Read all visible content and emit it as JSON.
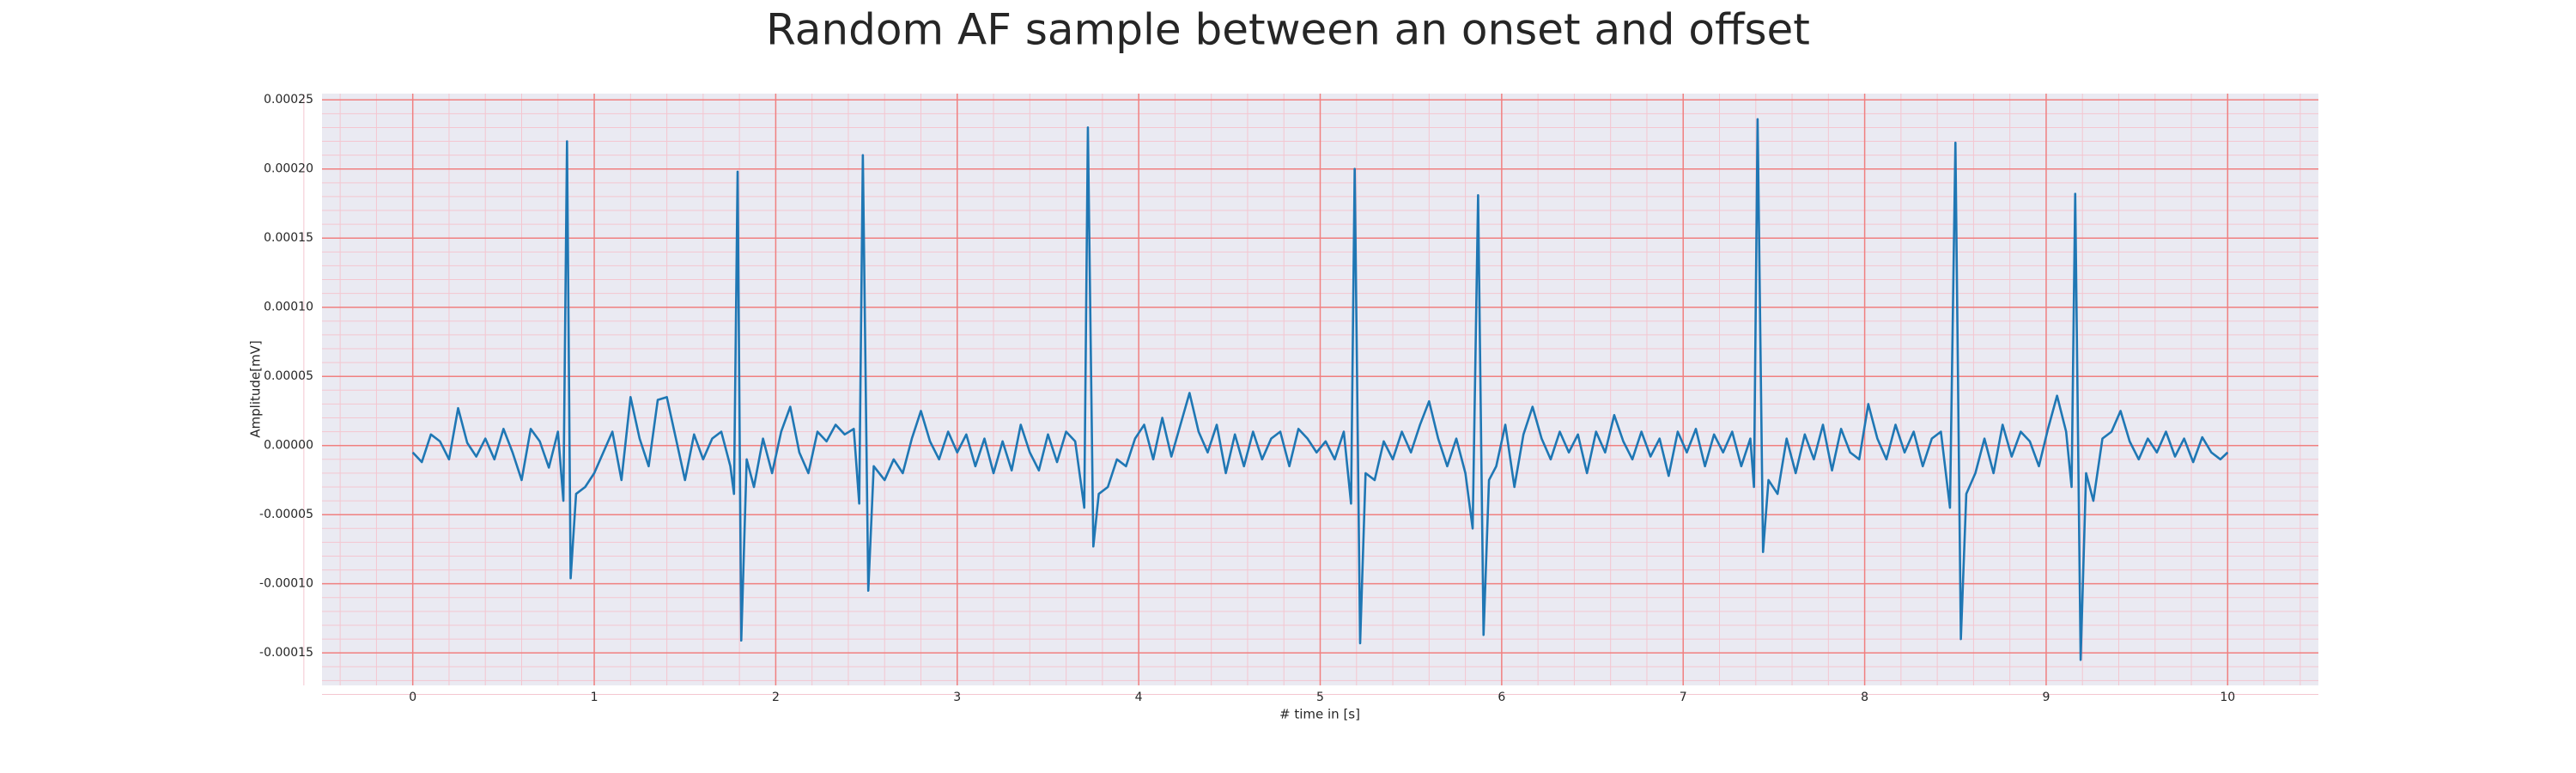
{
  "chart_data": {
    "type": "line",
    "title": "Random AF sample between an onset and offset",
    "xlabel": "# time in [s]",
    "ylabel": "Amplitude[mV]",
    "color": "#1f77b4",
    "background": "#eaeaf2",
    "grid": true,
    "grid_color": "#f08080",
    "minor_grid_color": "#f4c6d0",
    "minor_divisions": 5,
    "xlim": [
      -0.5,
      10.5
    ],
    "ylim": [
      -0.0001735,
      0.0002545
    ],
    "xticks": [
      0,
      1,
      2,
      3,
      4,
      5,
      6,
      7,
      8,
      9,
      10
    ],
    "yticks": [
      {
        "value": -0.00015,
        "label": "-0.00015"
      },
      {
        "value": -0.0001,
        "label": "-0.00010"
      },
      {
        "value": -5e-05,
        "label": "-0.00005"
      },
      {
        "value": 0,
        "label": "0.00000"
      },
      {
        "value": 5e-05,
        "label": "0.00005"
      },
      {
        "value": 0.0001,
        "label": "0.00010"
      },
      {
        "value": 0.00015,
        "label": "0.00015"
      },
      {
        "value": 0.0002,
        "label": "0.00020"
      },
      {
        "value": 0.00025,
        "label": "0.00025"
      }
    ],
    "x": [
      0.0,
      0.05,
      0.1,
      0.15,
      0.2,
      0.25,
      0.3,
      0.35,
      0.4,
      0.45,
      0.5,
      0.55,
      0.6,
      0.65,
      0.7,
      0.75,
      0.8,
      0.83,
      0.85,
      0.87,
      0.9,
      0.95,
      1.0,
      1.05,
      1.1,
      1.15,
      1.2,
      1.25,
      1.3,
      1.35,
      1.4,
      1.45,
      1.5,
      1.55,
      1.6,
      1.65,
      1.7,
      1.75,
      1.77,
      1.79,
      1.81,
      1.84,
      1.88,
      1.93,
      1.98,
      2.03,
      2.08,
      2.13,
      2.18,
      2.23,
      2.28,
      2.33,
      2.38,
      2.43,
      2.46,
      2.48,
      2.51,
      2.54,
      2.6,
      2.65,
      2.7,
      2.75,
      2.8,
      2.85,
      2.9,
      2.95,
      3.0,
      3.05,
      3.1,
      3.15,
      3.2,
      3.25,
      3.3,
      3.35,
      3.4,
      3.45,
      3.5,
      3.55,
      3.6,
      3.65,
      3.7,
      3.72,
      3.75,
      3.78,
      3.83,
      3.88,
      3.93,
      3.98,
      4.03,
      4.08,
      4.13,
      4.18,
      4.23,
      4.28,
      4.33,
      4.38,
      4.43,
      4.48,
      4.53,
      4.58,
      4.63,
      4.68,
      4.73,
      4.78,
      4.83,
      4.88,
      4.93,
      4.98,
      5.03,
      5.08,
      5.13,
      5.17,
      5.19,
      5.22,
      5.25,
      5.3,
      5.35,
      5.4,
      5.45,
      5.5,
      5.55,
      5.6,
      5.65,
      5.7,
      5.75,
      5.8,
      5.84,
      5.87,
      5.9,
      5.93,
      5.97,
      6.02,
      6.07,
      6.12,
      6.17,
      6.22,
      6.27,
      6.32,
      6.37,
      6.42,
      6.47,
      6.52,
      6.57,
      6.62,
      6.67,
      6.72,
      6.77,
      6.82,
      6.87,
      6.92,
      6.97,
      7.02,
      7.07,
      7.12,
      7.17,
      7.22,
      7.27,
      7.32,
      7.37,
      7.39,
      7.41,
      7.44,
      7.47,
      7.52,
      7.57,
      7.62,
      7.67,
      7.72,
      7.77,
      7.82,
      7.87,
      7.92,
      7.97,
      8.02,
      8.07,
      8.12,
      8.17,
      8.22,
      8.27,
      8.32,
      8.37,
      8.42,
      8.47,
      8.5,
      8.53,
      8.56,
      8.61,
      8.66,
      8.71,
      8.76,
      8.81,
      8.86,
      8.91,
      8.96,
      9.01,
      9.06,
      9.11,
      9.14,
      9.16,
      9.19,
      9.22,
      9.26,
      9.31,
      9.36,
      9.41,
      9.46,
      9.51,
      9.56,
      9.61,
      9.66,
      9.71,
      9.76,
      9.81,
      9.86,
      9.91,
      9.96,
      10.0
    ],
    "values": [
      -5e-06,
      -1.2e-05,
      8e-06,
      3e-06,
      -1e-05,
      2.7e-05,
      2e-06,
      -8e-06,
      5e-06,
      -1e-05,
      1.2e-05,
      -5e-06,
      -2.5e-05,
      1.2e-05,
      3e-06,
      -1.6e-05,
      1e-05,
      -4e-05,
      0.00022,
      -9.6e-05,
      -3.5e-05,
      -3e-05,
      -2e-05,
      -5e-06,
      1e-05,
      -2.5e-05,
      3.5e-05,
      5e-06,
      -1.5e-05,
      3.3e-05,
      3.5e-05,
      5e-06,
      -2.5e-05,
      8e-06,
      -1e-05,
      5e-06,
      1e-05,
      -1.5e-05,
      -3.5e-05,
      0.000198,
      -0.000141,
      -1e-05,
      -3e-05,
      5e-06,
      -2e-05,
      1e-05,
      2.8e-05,
      -5e-06,
      -2e-05,
      1e-05,
      3e-06,
      1.5e-05,
      8e-06,
      1.2e-05,
      -4.2e-05,
      0.00021,
      -0.000105,
      -1.5e-05,
      -2.5e-05,
      -1e-05,
      -2e-05,
      5e-06,
      2.5e-05,
      3e-06,
      -1e-05,
      1e-05,
      -5e-06,
      8e-06,
      -1.5e-05,
      5e-06,
      -2e-05,
      3e-06,
      -1.8e-05,
      1.5e-05,
      -5e-06,
      -1.8e-05,
      8e-06,
      -1.2e-05,
      1e-05,
      3e-06,
      -4.5e-05,
      0.00023,
      -7.3e-05,
      -3.5e-05,
      -3e-05,
      -1e-05,
      -1.5e-05,
      5e-06,
      1.5e-05,
      -1e-05,
      2e-05,
      -8e-06,
      1.5e-05,
      3.8e-05,
      1e-05,
      -5e-06,
      1.5e-05,
      -2e-05,
      8e-06,
      -1.5e-05,
      1e-05,
      -1e-05,
      5e-06,
      1e-05,
      -1.5e-05,
      1.2e-05,
      5e-06,
      -5e-06,
      3e-06,
      -1e-05,
      1e-05,
      -4.2e-05,
      0.0002,
      -0.000143,
      -2e-05,
      -2.5e-05,
      3e-06,
      -1e-05,
      1e-05,
      -5e-06,
      1.5e-05,
      3.2e-05,
      5e-06,
      -1.5e-05,
      5e-06,
      -2e-05,
      -6e-05,
      0.000181,
      -0.000137,
      -2.5e-05,
      -1.5e-05,
      1.5e-05,
      -3e-05,
      8e-06,
      2.8e-05,
      5e-06,
      -1e-05,
      1e-05,
      -5e-06,
      8e-06,
      -2e-05,
      1e-05,
      -5e-06,
      2.2e-05,
      3e-06,
      -1e-05,
      1e-05,
      -8e-06,
      5e-06,
      -2.2e-05,
      1e-05,
      -5e-06,
      1.2e-05,
      -1.5e-05,
      8e-06,
      -5e-06,
      1e-05,
      -1.5e-05,
      5e-06,
      -3e-05,
      0.000236,
      -7.7e-05,
      -2.5e-05,
      -3.5e-05,
      5e-06,
      -2e-05,
      8e-06,
      -1e-05,
      1.5e-05,
      -1.8e-05,
      1.2e-05,
      -5e-06,
      -1e-05,
      3e-05,
      5e-06,
      -1e-05,
      1.5e-05,
      -5e-06,
      1e-05,
      -1.5e-05,
      5e-06,
      1e-05,
      -4.5e-05,
      0.000219,
      -0.00014,
      -3.5e-05,
      -2e-05,
      5e-06,
      -2e-05,
      1.5e-05,
      -8e-06,
      1e-05,
      3e-06,
      -1.5e-05,
      1.2e-05,
      3.6e-05,
      1e-05,
      -3e-05,
      0.000182,
      -0.000155,
      -2e-05,
      -4e-05,
      5e-06,
      1e-05,
      2.5e-05,
      3e-06,
      -1e-05,
      5e-06,
      -5e-06,
      1e-05,
      -8e-06,
      5e-06,
      -1.2e-05,
      6e-06,
      -5e-06,
      -1e-05,
      -5e-06
    ]
  }
}
